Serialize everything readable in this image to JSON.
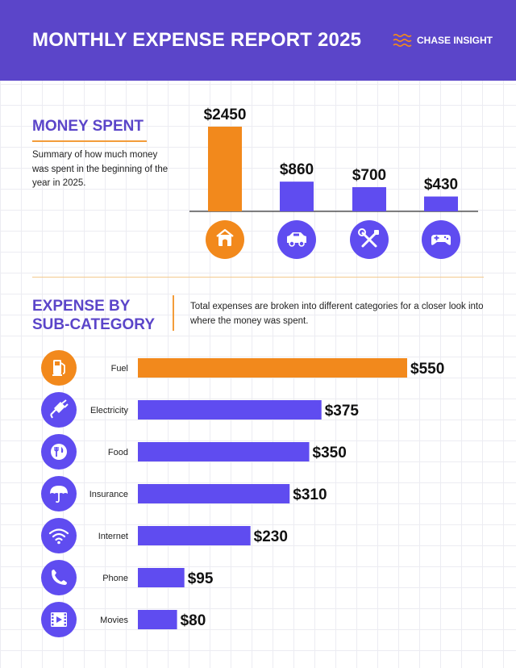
{
  "header": {
    "title": "MONTHLY EXPENSE REPORT 2025",
    "brand": "CHASE INSIGHT",
    "brand_icon": "wave-lines-icon",
    "background_color": "#5b45c9"
  },
  "money_spent": {
    "title": "MONEY SPENT",
    "description": "Summary of how much money was spent in the beginning of the year in 2025."
  },
  "sub_category": {
    "title_line1": "EXPENSE BY",
    "title_line2": "SUB-CATEGORY",
    "description": "Total expenses are broken into different categories for a closer look into where the money was spent."
  },
  "colors": {
    "accent_orange": "#f2891c",
    "primary_purple": "#5f4cf0",
    "heading_purple": "#5b45c9"
  },
  "chart_data": [
    {
      "type": "bar",
      "orientation": "vertical",
      "categories": [
        "home-icon",
        "car-icon",
        "tools-icon",
        "gamepad-icon"
      ],
      "values": [
        2450,
        860,
        700,
        430
      ],
      "value_labels": [
        "$2450",
        "$860",
        "$700",
        "$430"
      ],
      "highlight_index": 0,
      "ylim": [
        0,
        2450
      ]
    },
    {
      "type": "bar",
      "orientation": "horizontal",
      "categories": [
        "Fuel",
        "Electricity",
        "Food",
        "Insurance",
        "Internet",
        "Phone",
        "Movies"
      ],
      "icons": [
        "fuel-pump-icon",
        "plug-icon",
        "utensils-icon",
        "umbrella-icon",
        "wifi-icon",
        "phone-icon",
        "film-icon"
      ],
      "values": [
        550,
        375,
        350,
        310,
        230,
        95,
        80
      ],
      "value_labels": [
        "$550",
        "$375",
        "$350",
        "$310",
        "$230",
        "$95",
        "$80"
      ],
      "highlight_index": 0,
      "xlim": [
        0,
        550
      ]
    }
  ]
}
